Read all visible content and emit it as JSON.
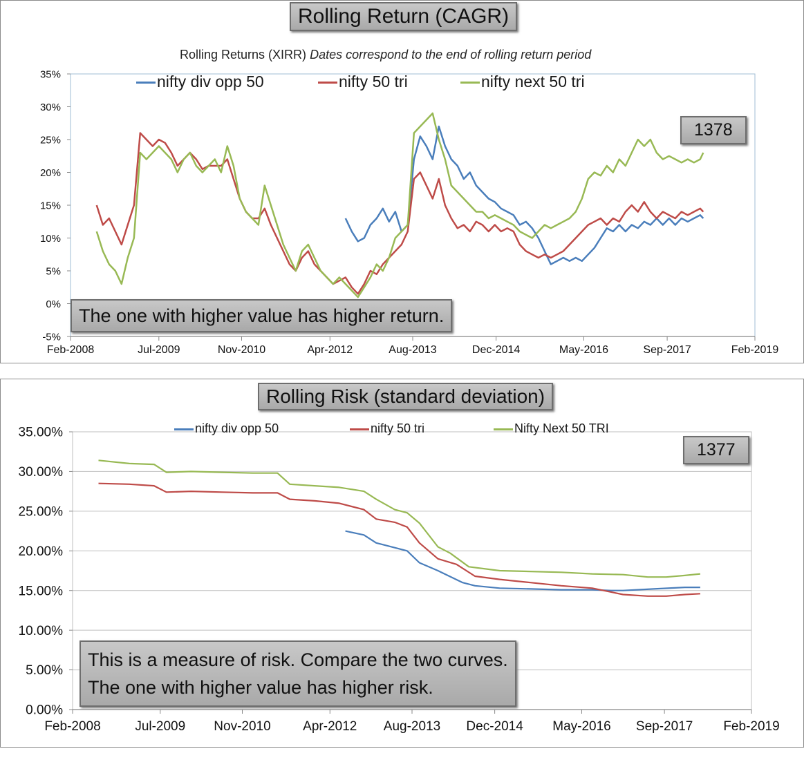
{
  "colors": {
    "series1": "#4a7ebb",
    "series2": "#be4b48",
    "series3": "#98b954",
    "grid": "#bfbfbf",
    "axis": "#888888"
  },
  "chart_data": [
    {
      "type": "line",
      "title": "Rolling Return (CAGR)",
      "subtitle_plain": "Rolling Returns (XIRR)",
      "subtitle_italic": "Dates correspond to the end of rolling return period",
      "count_label": "1378",
      "annotation": "The one with higher value has higher return.",
      "xlabel": "",
      "ylabel": "",
      "xlim": [
        2008.08,
        2019.08
      ],
      "ylim": [
        -5,
        35
      ],
      "grid": false,
      "legend": "top",
      "y_ticks": [
        "35%",
        "30%",
        "25%",
        "20%",
        "15%",
        "10%",
        "5%",
        "0%",
        "-5%"
      ],
      "y_tick_values": [
        35,
        30,
        25,
        20,
        15,
        10,
        5,
        0,
        -5
      ],
      "x_ticks": [
        "Feb-2008",
        "Jul-2009",
        "Nov-2010",
        "Apr-2012",
        "Aug-2013",
        "Dec-2014",
        "May-2016",
        "Sep-2017",
        "Feb-2019"
      ],
      "x_tick_values": [
        2008.08,
        2009.5,
        2010.83,
        2012.25,
        2013.58,
        2014.92,
        2016.33,
        2017.67,
        2019.08
      ],
      "series": [
        {
          "name": "nifty div opp 50",
          "x": [
            2012.5,
            2012.6,
            2012.7,
            2012.8,
            2012.9,
            2013.0,
            2013.1,
            2013.2,
            2013.3,
            2013.4,
            2013.5,
            2013.6,
            2013.7,
            2013.8,
            2013.9,
            2014.0,
            2014.1,
            2014.2,
            2014.3,
            2014.4,
            2014.5,
            2014.6,
            2014.7,
            2014.8,
            2014.9,
            2015.0,
            2015.1,
            2015.2,
            2015.3,
            2015.4,
            2015.5,
            2015.6,
            2015.7,
            2015.8,
            2015.9,
            2016.0,
            2016.1,
            2016.2,
            2016.3,
            2016.4,
            2016.5,
            2016.6,
            2016.7,
            2016.8,
            2016.9,
            2017.0,
            2017.1,
            2017.2,
            2017.3,
            2017.4,
            2017.5,
            2017.6,
            2017.7,
            2017.8,
            2017.9,
            2018.0,
            2018.1,
            2018.2,
            2018.25
          ],
          "y": [
            13,
            11,
            9.5,
            10,
            12,
            13,
            14.5,
            12.5,
            14,
            11,
            12,
            22,
            25.5,
            24,
            22,
            27,
            24,
            22,
            21,
            19,
            20,
            18,
            17,
            16,
            15.5,
            14.5,
            14,
            13.5,
            12,
            12.5,
            11.5,
            10,
            8,
            6,
            6.5,
            7,
            6.5,
            7,
            6.5,
            7.5,
            8.5,
            10,
            11.5,
            11,
            12,
            11,
            12,
            11.5,
            12.5,
            12,
            13,
            12,
            13,
            12,
            13,
            12.5,
            13,
            13.5,
            13
          ]
        },
        {
          "name": "nifty 50 tri",
          "x": [
            2008.5,
            2008.6,
            2008.7,
            2008.8,
            2008.9,
            2009.0,
            2009.1,
            2009.2,
            2009.3,
            2009.4,
            2009.5,
            2009.6,
            2009.7,
            2009.8,
            2009.9,
            2010.0,
            2010.1,
            2010.2,
            2010.3,
            2010.4,
            2010.5,
            2010.6,
            2010.7,
            2010.8,
            2010.9,
            2011.0,
            2011.1,
            2011.2,
            2011.3,
            2011.4,
            2011.5,
            2011.6,
            2011.7,
            2011.8,
            2011.9,
            2012.0,
            2012.1,
            2012.2,
            2012.3,
            2012.4,
            2012.5,
            2012.6,
            2012.7,
            2012.8,
            2012.9,
            2013.0,
            2013.1,
            2013.2,
            2013.3,
            2013.4,
            2013.5,
            2013.6,
            2013.7,
            2013.8,
            2013.9,
            2014.0,
            2014.1,
            2014.2,
            2014.3,
            2014.4,
            2014.5,
            2014.6,
            2014.7,
            2014.8,
            2014.9,
            2015.0,
            2015.1,
            2015.2,
            2015.3,
            2015.4,
            2015.5,
            2015.6,
            2015.7,
            2015.8,
            2015.9,
            2016.0,
            2016.1,
            2016.2,
            2016.3,
            2016.4,
            2016.5,
            2016.6,
            2016.7,
            2016.8,
            2016.9,
            2017.0,
            2017.1,
            2017.2,
            2017.3,
            2017.4,
            2017.5,
            2017.6,
            2017.7,
            2017.8,
            2017.9,
            2018.0,
            2018.1,
            2018.2,
            2018.25
          ],
          "y": [
            15,
            12,
            13,
            11,
            9,
            12,
            15,
            26,
            25,
            24,
            25,
            24.5,
            23,
            21,
            22,
            23,
            22,
            20.5,
            21,
            21,
            21,
            22,
            19,
            16,
            14,
            13,
            13,
            14.5,
            12,
            10,
            8,
            6,
            5,
            7,
            8,
            6,
            5,
            4,
            3,
            3.5,
            4,
            2.5,
            1.5,
            3,
            5,
            4.5,
            6,
            7,
            8,
            9,
            11,
            19,
            20,
            18,
            16,
            19,
            15,
            13,
            11.5,
            12,
            11,
            12.5,
            12,
            11,
            12,
            11,
            11.5,
            11,
            9,
            8,
            7.5,
            7,
            7.5,
            7,
            7.5,
            8,
            9,
            10,
            11,
            12,
            12.5,
            13,
            12,
            13,
            12.5,
            14,
            15,
            14,
            15.5,
            14,
            13,
            14,
            13.5,
            13,
            14,
            13.5,
            14,
            14.5,
            14
          ]
        },
        {
          "name": "nifty next 50 tri",
          "x": [
            2008.5,
            2008.6,
            2008.7,
            2008.8,
            2008.9,
            2009.0,
            2009.1,
            2009.2,
            2009.3,
            2009.4,
            2009.5,
            2009.6,
            2009.7,
            2009.8,
            2009.9,
            2010.0,
            2010.1,
            2010.2,
            2010.3,
            2010.4,
            2010.5,
            2010.6,
            2010.7,
            2010.8,
            2010.9,
            2011.0,
            2011.1,
            2011.2,
            2011.3,
            2011.4,
            2011.5,
            2011.6,
            2011.7,
            2011.8,
            2011.9,
            2012.0,
            2012.1,
            2012.2,
            2012.3,
            2012.4,
            2012.5,
            2012.6,
            2012.7,
            2012.8,
            2012.9,
            2013.0,
            2013.1,
            2013.2,
            2013.3,
            2013.4,
            2013.5,
            2013.6,
            2013.7,
            2013.8,
            2013.9,
            2014.0,
            2014.1,
            2014.2,
            2014.3,
            2014.4,
            2014.5,
            2014.6,
            2014.7,
            2014.8,
            2014.9,
            2015.0,
            2015.1,
            2015.2,
            2015.3,
            2015.4,
            2015.5,
            2015.6,
            2015.7,
            2015.8,
            2015.9,
            2016.0,
            2016.1,
            2016.2,
            2016.3,
            2016.4,
            2016.5,
            2016.6,
            2016.7,
            2016.8,
            2016.9,
            2017.0,
            2017.1,
            2017.2,
            2017.3,
            2017.4,
            2017.5,
            2017.6,
            2017.7,
            2017.8,
            2017.9,
            2018.0,
            2018.1,
            2018.2,
            2018.25
          ],
          "y": [
            11,
            8,
            6,
            5,
            3,
            7,
            10,
            23,
            22,
            23,
            24,
            23,
            22,
            20,
            22,
            23,
            21,
            20,
            21,
            22,
            20,
            24,
            21,
            16,
            14,
            13,
            12,
            18,
            15,
            12,
            9,
            7,
            5,
            8,
            9,
            7,
            5,
            4,
            3,
            4,
            3,
            2,
            1,
            2.5,
            4,
            6,
            5,
            7,
            10,
            11,
            12,
            26,
            27,
            28,
            29,
            25,
            22,
            18,
            17,
            16,
            15,
            14,
            14,
            13,
            13.5,
            13,
            12.5,
            12,
            11,
            10.5,
            10,
            11,
            12,
            11.5,
            12,
            12.5,
            13,
            14,
            16,
            19,
            20,
            19.5,
            21,
            20,
            22,
            21,
            23,
            25,
            24,
            25,
            23,
            22,
            22.5,
            22,
            21.5,
            22,
            21.5,
            22,
            23
          ]
        }
      ]
    },
    {
      "type": "line",
      "title": "Rolling Risk (standard deviation)",
      "count_label": "1377",
      "annotation_lines": [
        "This is a measure of risk.  Compare the two curves.",
        "The one with higher value has higher risk."
      ],
      "xlabel": "",
      "ylabel": "",
      "xlim": [
        2008.08,
        2019.08
      ],
      "ylim": [
        0,
        35
      ],
      "grid": true,
      "legend": "top",
      "y_ticks": [
        "35.00%",
        "30.00%",
        "25.00%",
        "20.00%",
        "15.00%",
        "10.00%",
        "5.00%",
        "0.00%"
      ],
      "y_tick_values": [
        35,
        30,
        25,
        20,
        15,
        10,
        5,
        0
      ],
      "x_ticks": [
        "Feb-2008",
        "Jul-2009",
        "Nov-2010",
        "Apr-2012",
        "Aug-2013",
        "Dec-2014",
        "May-2016",
        "Sep-2017",
        "Feb-2019"
      ],
      "x_tick_values": [
        2008.08,
        2009.5,
        2010.83,
        2012.25,
        2013.58,
        2014.92,
        2016.33,
        2017.67,
        2019.08
      ],
      "series": [
        {
          "name": "nifty div opp 50",
          "x": [
            2012.5,
            2012.8,
            2013.0,
            2013.1,
            2013.5,
            2013.7,
            2014.0,
            2014.4,
            2014.6,
            2015.0,
            2015.5,
            2016.0,
            2016.5,
            2016.8,
            2017.0,
            2017.5,
            2018.0,
            2018.25
          ],
          "y": [
            22.5,
            22.0,
            21.0,
            20.8,
            20.0,
            18.5,
            17.5,
            16.0,
            15.6,
            15.3,
            15.2,
            15.1,
            15.1,
            15.0,
            15.0,
            15.2,
            15.4,
            15.4
          ]
        },
        {
          "name": "nifty 50 tri",
          "x": [
            2008.5,
            2009.0,
            2009.4,
            2009.6,
            2010.0,
            2010.5,
            2011.0,
            2011.4,
            2011.6,
            2012.0,
            2012.4,
            2012.6,
            2012.8,
            2013.0,
            2013.3,
            2013.5,
            2013.7,
            2014.0,
            2014.3,
            2014.6,
            2015.0,
            2015.5,
            2016.0,
            2016.5,
            2017.0,
            2017.4,
            2017.7,
            2018.0,
            2018.25
          ],
          "y": [
            28.5,
            28.4,
            28.2,
            27.4,
            27.5,
            27.4,
            27.3,
            27.3,
            26.5,
            26.3,
            26.0,
            25.6,
            25.2,
            24.0,
            23.6,
            23.0,
            21.0,
            19.0,
            18.3,
            16.8,
            16.4,
            16.0,
            15.6,
            15.3,
            14.5,
            14.3,
            14.3,
            14.5,
            14.6
          ]
        },
        {
          "name": "Nifty Next 50 TRI",
          "x": [
            2008.5,
            2009.0,
            2009.4,
            2009.6,
            2010.0,
            2010.5,
            2011.0,
            2011.4,
            2011.6,
            2012.0,
            2012.4,
            2012.8,
            2013.0,
            2013.3,
            2013.5,
            2013.7,
            2014.0,
            2014.2,
            2014.5,
            2015.0,
            2015.5,
            2016.0,
            2016.5,
            2017.0,
            2017.4,
            2017.7,
            2018.0,
            2018.25
          ],
          "y": [
            31.4,
            31.0,
            30.9,
            29.9,
            30.0,
            29.9,
            29.8,
            29.8,
            28.4,
            28.2,
            28.0,
            27.5,
            26.5,
            25.2,
            24.8,
            23.5,
            20.5,
            19.7,
            18.0,
            17.5,
            17.4,
            17.3,
            17.1,
            17.0,
            16.7,
            16.7,
            16.9,
            17.1
          ]
        }
      ]
    }
  ]
}
